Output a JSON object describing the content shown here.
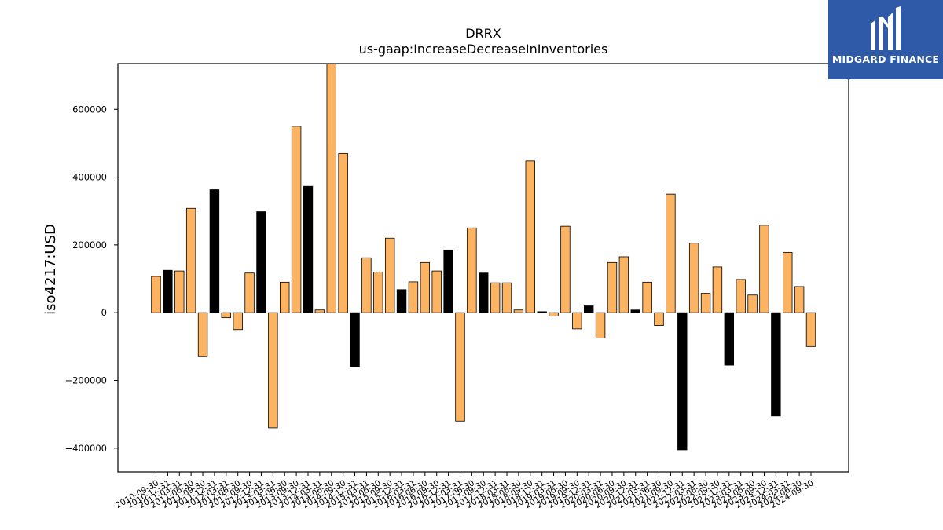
{
  "chart_data": {
    "type": "bar",
    "title": "DRRX",
    "subtitle": "us-gaap:IncreaseDecreaseInInventories",
    "xlabel": "",
    "ylabel": "iso4217:USD",
    "ylim": [
      -470000,
      735000
    ],
    "yticks": [
      -400000,
      -200000,
      0,
      200000,
      400000,
      600000
    ],
    "ytick_labels": [
      "−400000",
      "−200000",
      "0",
      "200000",
      "400000",
      "600000"
    ],
    "grid": false,
    "categories": [
      "2010-09-30",
      "2010-12-31",
      "2011-03-31",
      "2011-06-30",
      "2011-09-30",
      "2011-12-31",
      "2012-03-31",
      "2012-06-30",
      "2012-09-30",
      "2012-12-31",
      "2013-03-31",
      "2013-06-30",
      "2013-09-30",
      "2013-12-31",
      "2014-03-31",
      "2014-06-30",
      "2014-09-30",
      "2014-12-31",
      "2015-03-31",
      "2015-06-30",
      "2015-09-30",
      "2015-12-31",
      "2016-03-31",
      "2016-06-30",
      "2016-09-30",
      "2016-12-31",
      "2017-03-31",
      "2017-06-30",
      "2017-09-30",
      "2017-12-31",
      "2018-03-31",
      "2018-06-30",
      "2018-09-30",
      "2018-12-31",
      "2019-03-31",
      "2019-06-30",
      "2019-09-30",
      "2019-12-31",
      "2020-03-31",
      "2020-06-30",
      "2020-09-30",
      "2020-12-31",
      "2021-03-31",
      "2021-06-30",
      "2021-09-30",
      "2021-12-31",
      "2022-03-31",
      "2022-06-30",
      "2022-09-30",
      "2022-12-31",
      "2023-03-31",
      "2023-06-30",
      "2023-09-30",
      "2023-12-31",
      "2024-03-31",
      "2024-06-30",
      "2024-09-30"
    ],
    "values": [
      107000,
      125000,
      123000,
      308000,
      -130000,
      363000,
      -15000,
      -50000,
      117000,
      298000,
      -340000,
      90000,
      550000,
      373000,
      8000,
      735000,
      470000,
      -160000,
      162000,
      120000,
      220000,
      68000,
      91000,
      148000,
      123000,
      185000,
      -320000,
      250000,
      117000,
      88000,
      88000,
      8000,
      448000,
      3000,
      -10000,
      255000,
      -48000,
      20000,
      -75000,
      148000,
      165000,
      8000,
      90000,
      -38000,
      350000,
      -405000,
      205000,
      57000,
      135000,
      -155000,
      98000,
      52000,
      258000,
      -305000,
      178000,
      77000,
      -100000
    ],
    "highlight": [
      false,
      true,
      false,
      false,
      false,
      true,
      false,
      false,
      false,
      true,
      false,
      false,
      false,
      true,
      false,
      false,
      false,
      true,
      false,
      false,
      false,
      true,
      false,
      false,
      false,
      true,
      false,
      false,
      true,
      false,
      false,
      false,
      false,
      true,
      false,
      false,
      false,
      true,
      false,
      false,
      false,
      true,
      false,
      false,
      false,
      true,
      false,
      false,
      false,
      true,
      false,
      false,
      false,
      true,
      false,
      false,
      false
    ],
    "colors": {
      "bar": "#fdb462",
      "highlight": "#000000",
      "edge": "#000000"
    }
  },
  "logo": {
    "text": "MIDGARD FINANCE",
    "background": "#2f5aa8"
  }
}
